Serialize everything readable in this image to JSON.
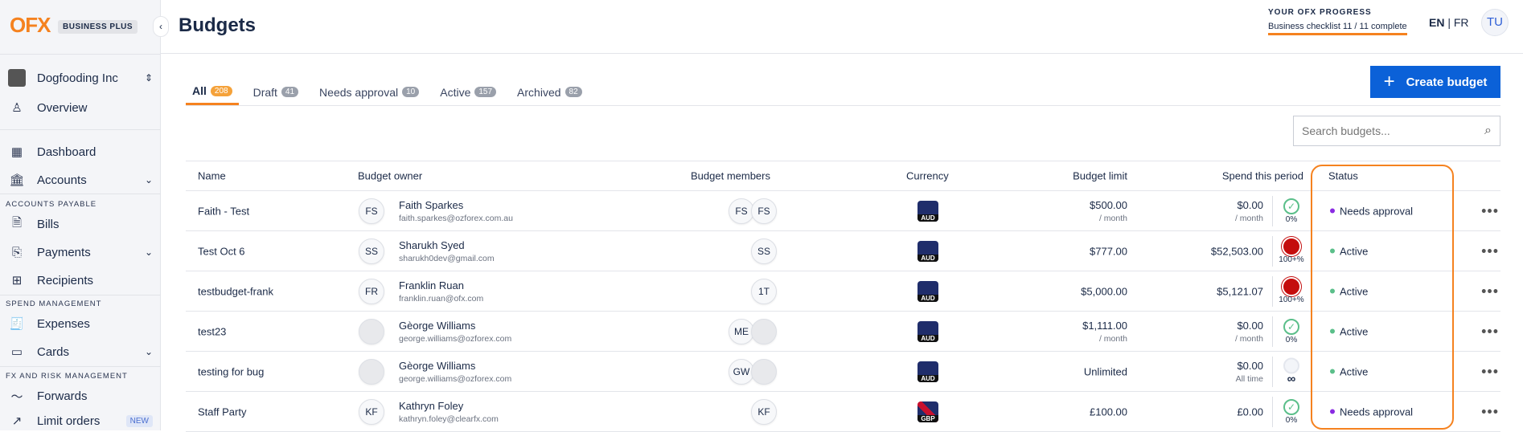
{
  "sidebar": {
    "logo": "OFX",
    "plan": "BUSINESS PLUS",
    "org": "Dogfooding Inc",
    "items": [
      {
        "label": "Overview",
        "icon": "person-icon"
      },
      {
        "label": "Dashboard",
        "icon": "grid-icon"
      },
      {
        "label": "Accounts",
        "icon": "bank-icon"
      },
      {
        "label": "Bills",
        "icon": "bill-icon"
      },
      {
        "label": "Payments",
        "icon": "payments-icon"
      },
      {
        "label": "Recipients",
        "icon": "contacts-icon"
      },
      {
        "label": "Expenses",
        "icon": "receipt-icon"
      },
      {
        "label": "Cards",
        "icon": "card-icon"
      },
      {
        "label": "Forwards",
        "icon": "forwards-icon"
      },
      {
        "label": "Limit orders",
        "icon": "chart-icon",
        "badge": "NEW"
      }
    ],
    "sections": [
      "ACCOUNTS PAYABLE",
      "SPEND MANAGEMENT",
      "FX AND RISK MANAGEMENT"
    ]
  },
  "header": {
    "title": "Budgets",
    "progress_title": "YOUR OFX PROGRESS",
    "progress_text": "Business checklist 11 / 11 complete",
    "progress": 1.0,
    "lang_en": "EN",
    "lang_fr": "FR",
    "avatar": "TU"
  },
  "tabs": [
    {
      "label": "All",
      "count": "208"
    },
    {
      "label": "Draft",
      "count": "41"
    },
    {
      "label": "Needs approval",
      "count": "10"
    },
    {
      "label": "Active",
      "count": "157"
    },
    {
      "label": "Archived",
      "count": "82"
    }
  ],
  "create_label": "Create budget",
  "search": {
    "placeholder": "Search budgets..."
  },
  "columns": [
    "Name",
    "Budget owner",
    "Budget members",
    "Currency",
    "Budget limit",
    "Spend this period",
    "Status"
  ],
  "rows": [
    {
      "name": "Faith - Test",
      "owner_initials": "FS",
      "owner": "Faith Sparkes",
      "email": "faith.sparkes@ozforex.com.au",
      "members": [
        "FS",
        "FS"
      ],
      "currency": "AUD",
      "limit": "$500.00",
      "limit_sub": "/ month",
      "spend": "$0.00",
      "spend_sub": "/ month",
      "pct": "0%",
      "ind": "ok",
      "status": "Needs approval"
    },
    {
      "name": "Test Oct 6",
      "owner_initials": "SS",
      "owner": "Sharukh Syed",
      "email": "sharukh0dev@gmail.com",
      "members": [
        "SS"
      ],
      "currency": "AUD",
      "limit": "$777.00",
      "limit_sub": "",
      "spend": "$52,503.00",
      "spend_sub": "",
      "pct": "100+%",
      "ind": "over",
      "status": "Active"
    },
    {
      "name": "testbudget-frank",
      "owner_initials": "FR",
      "owner": "Franklin Ruan",
      "email": "franklin.ruan@ofx.com",
      "members": [
        "1T"
      ],
      "currency": "AUD",
      "limit": "$5,000.00",
      "limit_sub": "",
      "spend": "$5,121.07",
      "spend_sub": "",
      "pct": "100+%",
      "ind": "over",
      "status": "Active"
    },
    {
      "name": "test23",
      "owner_initials": "",
      "owner": "Gèorge Williams",
      "email": "george.williams@ozforex.com",
      "members": [
        "ME",
        ""
      ],
      "currency": "AUD",
      "limit": "$1,111.00",
      "limit_sub": "/ month",
      "spend": "$0.00",
      "spend_sub": "/ month",
      "pct": "0%",
      "ind": "ok",
      "status": "Active"
    },
    {
      "name": "testing for bug",
      "owner_initials": "",
      "owner": "Gèorge Williams",
      "email": "george.williams@ozforex.com",
      "members": [
        "GW",
        ""
      ],
      "currency": "AUD",
      "limit": "Unlimited",
      "limit_sub": "",
      "spend": "$0.00",
      "spend_sub": "All time",
      "pct": "∞",
      "ind": "none",
      "status": "Active"
    },
    {
      "name": "Staff Party",
      "owner_initials": "KF",
      "owner": "Kathryn Foley",
      "email": "kathryn.foley@clearfx.com",
      "members": [
        "KF"
      ],
      "currency": "GBP",
      "limit": "£100.00",
      "limit_sub": "",
      "spend": "£0.00",
      "spend_sub": "",
      "pct": "0%",
      "ind": "ok",
      "status": "Needs approval"
    }
  ],
  "colors": {
    "accent": "#f5821f",
    "primary": "#0b61d8",
    "needs_approval": "#8a2be2",
    "active": "#5bbf8a",
    "over": "#c40d0d"
  }
}
